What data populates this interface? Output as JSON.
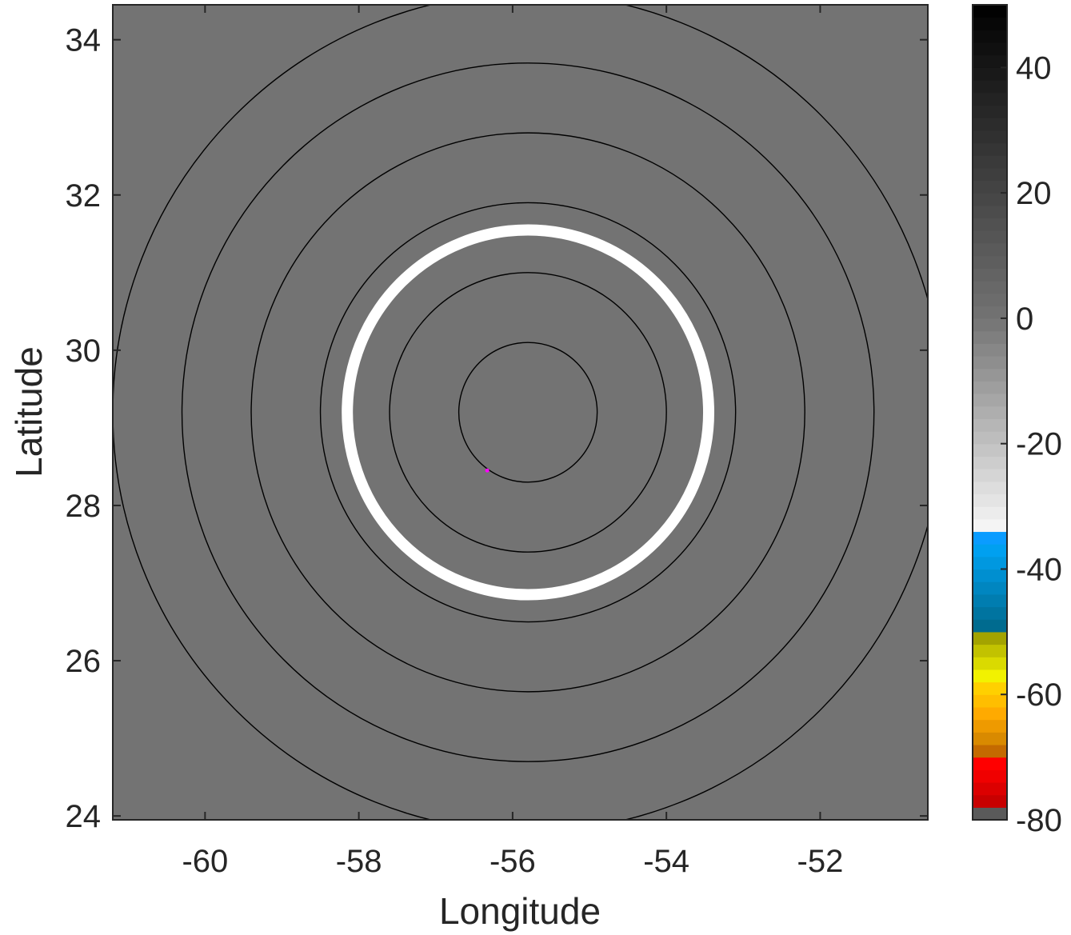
{
  "chart_data": {
    "type": "heatmap",
    "xlabel": "Longitude",
    "ylabel": "Latitude",
    "xlim": [
      -61.2,
      -50.6
    ],
    "ylim": [
      23.95,
      34.45
    ],
    "xticks": [
      -60,
      -58,
      -56,
      -54,
      -52
    ],
    "yticks": [
      24,
      26,
      28,
      30,
      32,
      34
    ],
    "grid": false,
    "field_fill_value": -80,
    "field_color": "#737373",
    "center": {
      "lon": -55.8,
      "lat": 29.2
    },
    "contours": {
      "color": "#000000",
      "radii_deg_lon": [
        0.9,
        1.8,
        2.7,
        3.6,
        4.5,
        5.4
      ],
      "radii_deg_lat": [
        0.9,
        1.8,
        2.7,
        3.6,
        4.5,
        5.4
      ]
    },
    "highlight_ring": {
      "radius_deg_lon": 2.35,
      "radius_deg_lat": 2.35,
      "color": "#ffffff"
    },
    "marker": {
      "lon": -56.33,
      "lat": 28.45,
      "color": "#ff00ff"
    },
    "colorbar": {
      "range": [
        -80,
        50
      ],
      "ticks": [
        -80,
        -60,
        -40,
        -20,
        0,
        20,
        40
      ],
      "bands": [
        {
          "from": -80,
          "to": -78,
          "color": "#5a5a5a"
        },
        {
          "from": -78,
          "to": -76,
          "color": "#c80000"
        },
        {
          "from": -76,
          "to": -74,
          "color": "#dc0000"
        },
        {
          "from": -74,
          "to": -72,
          "color": "#f00000"
        },
        {
          "from": -72,
          "to": -70,
          "color": "#ff0000"
        },
        {
          "from": -70,
          "to": -68,
          "color": "#c46a00"
        },
        {
          "from": -68,
          "to": -66,
          "color": "#d98a00"
        },
        {
          "from": -66,
          "to": -64,
          "color": "#ee9a00"
        },
        {
          "from": -64,
          "to": -62,
          "color": "#ffaa00"
        },
        {
          "from": -62,
          "to": -60,
          "color": "#ffbe00"
        },
        {
          "from": -60,
          "to": -58,
          "color": "#ffd000"
        },
        {
          "from": -58,
          "to": -56,
          "color": "#f2f200"
        },
        {
          "from": -56,
          "to": -54,
          "color": "#dada00"
        },
        {
          "from": -54,
          "to": -52,
          "color": "#c2c200"
        },
        {
          "from": -52,
          "to": -50,
          "color": "#a3a300"
        },
        {
          "from": -50,
          "to": -48,
          "color": "#006b8f"
        },
        {
          "from": -48,
          "to": -46,
          "color": "#0074a0"
        },
        {
          "from": -46,
          "to": -44,
          "color": "#007db0"
        },
        {
          "from": -44,
          "to": -42,
          "color": "#0086c0"
        },
        {
          "from": -42,
          "to": -40,
          "color": "#008fd0"
        },
        {
          "from": -40,
          "to": -38,
          "color": "#0098e0"
        },
        {
          "from": -38,
          "to": -36,
          "color": "#00a0f0"
        },
        {
          "from": -36,
          "to": -34,
          "color": "#0a9cff"
        }
      ],
      "gray_from": -34,
      "gray_to": 50,
      "gray_light": "#f8f8f8",
      "gray_mid_value": 0,
      "gray_mid": "#737373",
      "gray_dark": "#000000"
    }
  }
}
